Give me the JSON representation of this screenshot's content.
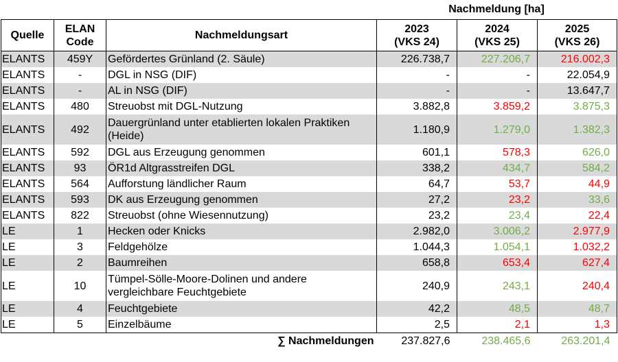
{
  "colors": {
    "increase": "#70AD47",
    "decrease": "#FF0000",
    "shade": "#D9D9D9"
  },
  "header": {
    "super": "Nachmeldung [ha]",
    "quelle": "Quelle",
    "code_line1": "ELAN",
    "code_line2": "Code",
    "art": "Nachmeldungsart",
    "y2023_line1": "2023",
    "y2023_line2": "(VKS 24)",
    "y2024_line1": "2024",
    "y2024_line2": "(VKS 25)",
    "y2025_line1": "2025",
    "y2025_line2": "(VKS 26)"
  },
  "rows": [
    {
      "quelle": "ELANTS",
      "code": "459Y",
      "art": "Gefördertes Grünland (2. Säule)",
      "v2023": "226.738,7",
      "v2024": "227.206,7",
      "c2024": "g",
      "v2025": "216.002,3",
      "c2025": "r"
    },
    {
      "quelle": "ELANTS",
      "code": "-",
      "art": "DGL in NSG (DIF)",
      "v2023": "-",
      "v2024": "-",
      "c2024": "",
      "v2025": "22.054,9",
      "c2025": ""
    },
    {
      "quelle": "ELANTS",
      "code": "-",
      "art": "AL in NSG (DIF)",
      "v2023": "-",
      "v2024": "-",
      "c2024": "",
      "v2025": "13.647,7",
      "c2025": ""
    },
    {
      "quelle": "ELANTS",
      "code": "480",
      "art": "Streuobst mit DGL-Nutzung",
      "v2023": "3.882,8",
      "v2024": "3.859,2",
      "c2024": "r",
      "v2025": "3.875,3",
      "c2025": "g"
    },
    {
      "quelle": "ELANTS",
      "code": "492",
      "art": "Dauergrünland unter etablierten lokalen Praktiken (Heide)",
      "v2023": "1.180,9",
      "v2024": "1.279,0",
      "c2024": "g",
      "v2025": "1.382,3",
      "c2025": "g"
    },
    {
      "quelle": "ELANTS",
      "code": "592",
      "art": "DGL aus Erzeugung genommen",
      "v2023": "601,1",
      "v2024": "578,3",
      "c2024": "r",
      "v2025": "626,0",
      "c2025": "g"
    },
    {
      "quelle": "ELANTS",
      "code": "93",
      "art": "ÖR1d Altgrasstreifen DGL",
      "v2023": "338,2",
      "v2024": "434,7",
      "c2024": "g",
      "v2025": "584,2",
      "c2025": "g"
    },
    {
      "quelle": "ELANTS",
      "code": "564",
      "art": "Aufforstung ländlicher Raum",
      "v2023": "64,7",
      "v2024": "53,7",
      "c2024": "r",
      "v2025": "44,9",
      "c2025": "r"
    },
    {
      "quelle": "ELANTS",
      "code": "593",
      "art": "DK aus Erzeugung genommen",
      "v2023": "27,2",
      "v2024": "23,2",
      "c2024": "r",
      "v2025": "33,6",
      "c2025": "g"
    },
    {
      "quelle": "ELANTS",
      "code": "822",
      "art": "Streuobst (ohne Wiesennutzung)",
      "v2023": "23,2",
      "v2024": "23,4",
      "c2024": "g",
      "v2025": "22,4",
      "c2025": "r"
    },
    {
      "quelle": "LE",
      "code": "1",
      "art": "Hecken oder Knicks",
      "v2023": "2.982,0",
      "v2024": "3.006,2",
      "c2024": "g",
      "v2025": "2.977,9",
      "c2025": "r"
    },
    {
      "quelle": "LE",
      "code": "3",
      "art": "Feldgehölze",
      "v2023": "1.044,3",
      "v2024": "1.054,1",
      "c2024": "g",
      "v2025": "1.032,2",
      "c2025": "r"
    },
    {
      "quelle": "LE",
      "code": "2",
      "art": "Baumreihen",
      "v2023": "658,8",
      "v2024": "653,4",
      "c2024": "r",
      "v2025": "627,4",
      "c2025": "r"
    },
    {
      "quelle": "LE",
      "code": "10",
      "art": "Tümpel-Sölle-Moore-Dolinen und andere vergleichbare Feuchtgebiete",
      "v2023": "240,9",
      "v2024": "243,1",
      "c2024": "g",
      "v2025": "240,4",
      "c2025": "r"
    },
    {
      "quelle": "LE",
      "code": "4",
      "art": "Feuchtgebiete",
      "v2023": "42,2",
      "v2024": "48,5",
      "c2024": "g",
      "v2025": "48,7",
      "c2025": "g"
    },
    {
      "quelle": "LE",
      "code": "5",
      "art": "Einzelbäume",
      "v2023": "2,5",
      "v2024": "2,1",
      "c2024": "r",
      "v2025": "1,3",
      "c2025": "r"
    }
  ],
  "sum": {
    "label": "∑ Nachmeldungen",
    "v2023": "237.827,6",
    "v2024": "238.465,6",
    "c2024": "g",
    "v2025": "263.201,4",
    "c2025": "g"
  }
}
